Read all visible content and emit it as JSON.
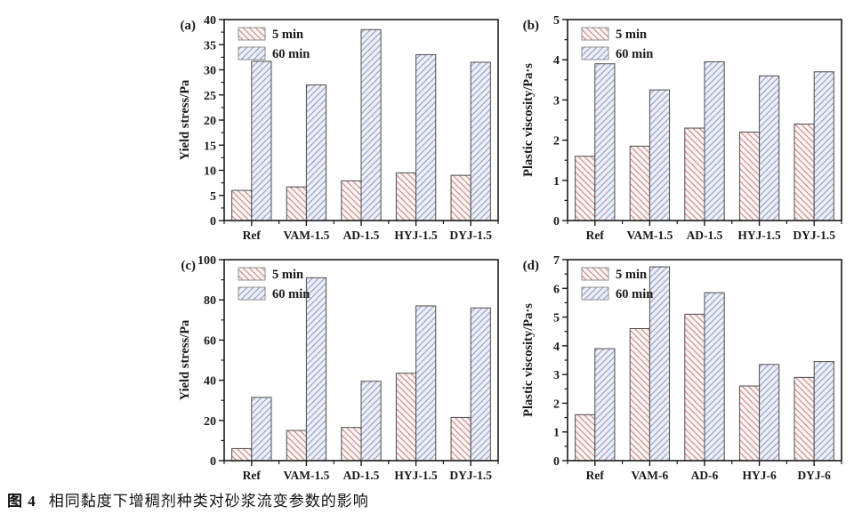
{
  "figure_caption": {
    "label": "图 4",
    "text": "相同黏度下增稠剂种类对砂浆流变参数的影响"
  },
  "legend": {
    "entries": [
      "5 min",
      "60 min"
    ],
    "position": "top-left"
  },
  "colors": {
    "hatch5_line": "#c4827e",
    "hatch5_bg": "#fbf4f2",
    "hatch60_line": "#8e97c2",
    "hatch60_bg": "#edeff7",
    "bar_edge": "#4d4d4d",
    "axis": "#1a1a1a",
    "text": "#1a1a1a"
  },
  "chart_data": [
    {
      "id": "a",
      "type": "bar",
      "panel_label": "(a)",
      "ylabel": "Yield stress/Pa",
      "xlabel": "",
      "ylim": [
        0,
        40
      ],
      "ytick_step": 5,
      "minor_step": 2.5,
      "grid": false,
      "legend_position": "top-left",
      "categories": [
        "Ref",
        "VAM-1.5",
        "AD-1.5",
        "HYJ-1.5",
        "DYJ-1.5"
      ],
      "series": [
        {
          "name": "5 min",
          "values": [
            6.0,
            6.7,
            7.9,
            9.5,
            9.0
          ]
        },
        {
          "name": "60 min",
          "values": [
            31.7,
            27.0,
            38.0,
            33.0,
            31.5
          ]
        }
      ]
    },
    {
      "id": "b",
      "type": "bar",
      "panel_label": "(b)",
      "ylabel": "Plastic viscosity/Pa·s",
      "xlabel": "",
      "ylim": [
        0,
        5
      ],
      "ytick_step": 1,
      "minor_step": 0.5,
      "grid": false,
      "legend_position": "top-left",
      "categories": [
        "Ref",
        "VAM-1.5",
        "AD-1.5",
        "HYJ-1.5",
        "DYJ-1.5"
      ],
      "series": [
        {
          "name": "5 min",
          "values": [
            1.6,
            1.85,
            2.3,
            2.2,
            2.4
          ]
        },
        {
          "name": "60 min",
          "values": [
            3.9,
            3.25,
            3.95,
            3.6,
            3.7
          ]
        }
      ]
    },
    {
      "id": "c",
      "type": "bar",
      "panel_label": "(c)",
      "ylabel": "Yield stress/Pa",
      "xlabel": "",
      "ylim": [
        0,
        100
      ],
      "ytick_step": 20,
      "minor_step": 10,
      "grid": false,
      "legend_position": "top-left",
      "categories": [
        "Ref",
        "VAM-1.5",
        "AD-1.5",
        "HYJ-1.5",
        "DYJ-1.5"
      ],
      "series": [
        {
          "name": "5 min",
          "values": [
            6.0,
            15.0,
            16.5,
            43.5,
            21.5
          ]
        },
        {
          "name": "60 min",
          "values": [
            31.5,
            91.0,
            39.5,
            77.0,
            76.0
          ]
        }
      ]
    },
    {
      "id": "d",
      "type": "bar",
      "panel_label": "(d)",
      "ylabel": "Plastic viscosity/Pa·s",
      "xlabel": "",
      "ylim": [
        0,
        7
      ],
      "ytick_step": 1,
      "minor_step": 0.5,
      "grid": false,
      "legend_position": "top-left",
      "categories": [
        "Ref",
        "VAM-6",
        "AD-6",
        "HYJ-6",
        "DYJ-6"
      ],
      "series": [
        {
          "name": "5 min",
          "values": [
            1.6,
            4.6,
            5.1,
            2.6,
            2.9
          ]
        },
        {
          "name": "60 min",
          "values": [
            3.9,
            6.75,
            5.85,
            3.35,
            3.45
          ]
        }
      ]
    }
  ]
}
